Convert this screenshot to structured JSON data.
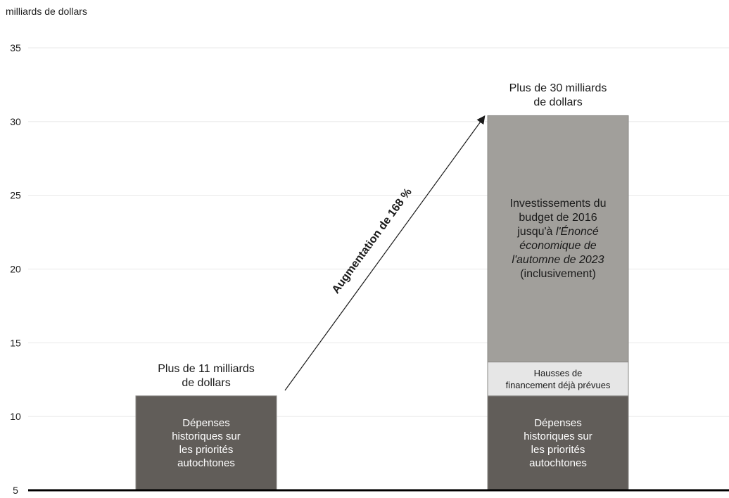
{
  "chart_data": {
    "type": "bar",
    "stacked": true,
    "ylabel": "milliards de dollars",
    "ylim": [
      5,
      35
    ],
    "yticks": [
      "35",
      "30",
      "25",
      "20",
      "15",
      "10",
      "5"
    ],
    "grid": true,
    "categories": [
      "",
      ""
    ],
    "bars": [
      {
        "total_label": "Plus de 11 milliards de dollars",
        "total_lines": [
          "Plus de 11 milliards",
          "de dollars"
        ],
        "segments": [
          {
            "name": "Dépenses historiques sur les priorités autochtones",
            "value": 11.4,
            "color": "#615d59",
            "label_lines": [
              "Dépenses",
              "historiques sur",
              "les priorités",
              "autochtones"
            ]
          }
        ]
      },
      {
        "total_label": "Plus de 30 milliards de dollars",
        "total_lines": [
          "Plus de 30 milliards",
          "de dollars"
        ],
        "segments": [
          {
            "name": "Dépenses historiques sur les priorités autochtones",
            "value": 11.4,
            "color": "#615d59",
            "label_lines": [
              "Dépenses",
              "historiques sur",
              "les priorités",
              "autochtones"
            ]
          },
          {
            "name": "Hausses de financement déjà prévues",
            "value": 2.3,
            "color": "#e6e6e6",
            "label_lines": [
              "Hausses de",
              "financement déjà prévues"
            ]
          },
          {
            "name": "Investissements du budget de 2016 jusqu'à l'Énoncé économique de l'automne de 2023 (inclusivement)",
            "value": 16.7,
            "color": "#a19f9b",
            "label_lines": [
              "Investissements du",
              "budget de 2016",
              "jusqu'à |l'Énoncé",
              "|économique de",
              "|l'automne de 2023",
              "(inclusivement)"
            ]
          }
        ]
      }
    ],
    "annotations": [
      {
        "text": "Augmentation de 168 %",
        "type": "arrow",
        "from_bar": 0,
        "to_bar": 1
      }
    ],
    "colors": {
      "historical": "#615d59",
      "planned": "#e6e6e6",
      "investments": "#a19f9b",
      "axis": "#000000",
      "grid": "#e8e8e8"
    }
  }
}
